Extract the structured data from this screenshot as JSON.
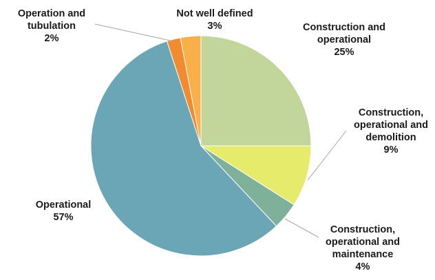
{
  "chart_data": {
    "type": "pie",
    "title": "",
    "slices": [
      {
        "label_lines": [
          "Construction and",
          "operational"
        ],
        "value_label": "25%",
        "value": 25,
        "color": "#c2d69b"
      },
      {
        "label_lines": [
          "Construction,",
          "operational and",
          "demolition"
        ],
        "value_label": "9%",
        "value": 9,
        "color": "#e6eb6b"
      },
      {
        "label_lines": [
          "Construction,",
          "operational and",
          "maintenance"
        ],
        "value_label": "4%",
        "value": 4,
        "color": "#7fb09a"
      },
      {
        "label_lines": [
          "Operational"
        ],
        "value_label": "57%",
        "value": 57,
        "color": "#6aa6b5"
      },
      {
        "label_lines": [
          "Operation and",
          "tubulation"
        ],
        "value_label": "2%",
        "value": 2,
        "color": "#f28a30"
      },
      {
        "label_lines": [
          "Not well defined"
        ],
        "value_label": "3%",
        "value": 3,
        "color": "#f9b04a"
      }
    ],
    "legend": "none",
    "data_labels": "outside"
  }
}
